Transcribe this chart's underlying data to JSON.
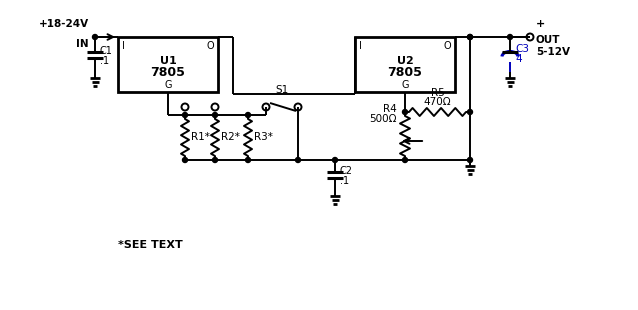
{
  "bg_color": "#ffffff",
  "line_color": "#000000",
  "blue_color": "#0000bb",
  "figsize": [
    6.38,
    3.1
  ],
  "dpi": 100,
  "labels": {
    "input_voltage": "+18-24V",
    "input_in": "IN",
    "output_plus": "+",
    "output_out": "OUT",
    "output_v": "5-12V",
    "u1_box": "U1\n7805",
    "u2_box": "U2\n7805",
    "u1_i": "I",
    "u1_o": "O",
    "u1_g": "G",
    "u2_i": "I",
    "u2_o": "O",
    "u2_g": "G",
    "c1_label": "C1",
    "c1_val": ".1",
    "c2_label": "C2",
    "c2_val": ".1",
    "c3_label": "C3",
    "c3_val": "4",
    "r1": "R1*",
    "r2": "R2*",
    "r3": "R3*",
    "r4_label": "R4",
    "r4_val": "500Ω",
    "r5_label": "R5",
    "r5_val": "470Ω",
    "s1": "S1",
    "see_text": "*SEE TEXT"
  }
}
